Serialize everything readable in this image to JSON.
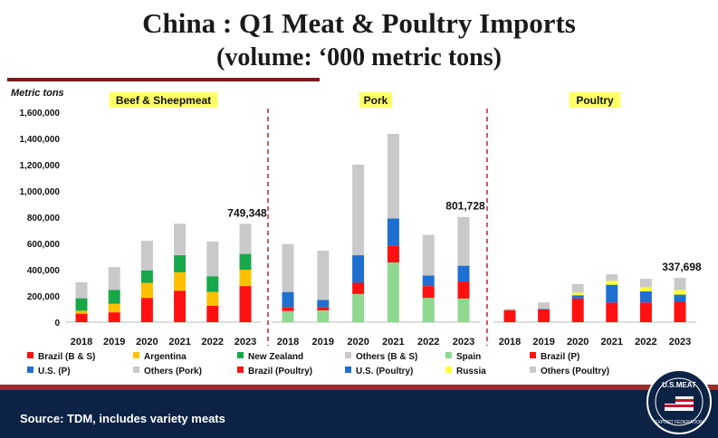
{
  "title_line1": "China : Q1 Meat & Poultry Imports",
  "title_line2": "(volume: ‘000 metric tons)",
  "footer_source": "Source: TDM, includes variety meats",
  "logo_text": "U.S.MEAT EXPORT FEDERATION",
  "colors": {
    "title_rule": "#7a1b1b",
    "footer_bg": "#0d2346",
    "footer_stripe": "#9e2a2b",
    "panel_label_bg": "#ffff66",
    "divider": "#b02a2a"
  },
  "chart_data": {
    "type": "bar",
    "stacked": true,
    "ylabel": "Metric tons",
    "ylim": [
      0,
      1600000
    ],
    "y_ticks": [
      0,
      200000,
      400000,
      600000,
      800000,
      1000000,
      1200000,
      1400000,
      1600000
    ],
    "y_tick_labels": [
      "0",
      "200,000",
      "400,000",
      "600,000",
      "800,000",
      "1,000,000",
      "1,200,000",
      "1,400,000",
      "1,600,000"
    ],
    "grid": false,
    "legend": "bottom",
    "panels": [
      {
        "label": "Beef & Sheepmeat",
        "categories": [
          "2018",
          "2019",
          "2020",
          "2021",
          "2022",
          "2023"
        ],
        "series": [
          {
            "name": "Brazil (B & S)",
            "color": "#ff1111",
            "values": [
              65000,
              75000,
              185000,
              240000,
              125000,
              275000
            ]
          },
          {
            "name": "Argentina",
            "color": "#ffc000",
            "values": [
              22000,
              65000,
              115000,
              140000,
              105000,
              125000
            ]
          },
          {
            "name": "New Zealand",
            "color": "#17a84a",
            "values": [
              95000,
              105000,
              95000,
              130000,
              120000,
              120000
            ]
          },
          {
            "name": "Others (B & S)",
            "color": "#c9c9c9",
            "values": [
              123000,
              175000,
              225000,
              240000,
              265000,
              229348
            ]
          }
        ],
        "annotation": {
          "category": "2023",
          "text": "749,348"
        }
      },
      {
        "label": "Pork",
        "categories": [
          "2018",
          "2019",
          "2020",
          "2021",
          "2022",
          "2023"
        ],
        "series": [
          {
            "name": "Spain",
            "color": "#8fd88f",
            "values": [
              85000,
              90000,
              215000,
              455000,
              185000,
              180000
            ]
          },
          {
            "name": "Brazil (P)",
            "color": "#ff1111",
            "values": [
              30000,
              25000,
              85000,
              130000,
              90000,
              130000
            ]
          },
          {
            "name": "U.S. (P)",
            "color": "#1f6fd1",
            "values": [
              115000,
              55000,
              210000,
              205000,
              80000,
              120000
            ]
          },
          {
            "name": "Others (Pork)",
            "color": "#c9c9c9",
            "values": [
              365000,
              375000,
              690000,
              645000,
              310000,
              371728
            ]
          }
        ],
        "annotation": {
          "category": "2023",
          "text": "801,728"
        }
      },
      {
        "label": "Poultry",
        "categories": [
          "2018",
          "2019",
          "2020",
          "2021",
          "2022",
          "2023"
        ],
        "series": [
          {
            "name": "Brazil (Poultry)",
            "color": "#ff1111",
            "values": [
              92000,
              98000,
              180000,
              150000,
              150000,
              155000
            ]
          },
          {
            "name": "U.S. (Poultry)",
            "color": "#1f6fd1",
            "values": [
              0,
              2000,
              25000,
              135000,
              85000,
              55000
            ]
          },
          {
            "name": "Russia",
            "color": "#ffff33",
            "values": [
              0,
              0,
              20000,
              30000,
              30000,
              35000
            ]
          },
          {
            "name": "Others (Poultry)",
            "color": "#c9c9c9",
            "values": [
              10000,
              50000,
              65000,
              50000,
              65000,
              92698
            ]
          }
        ],
        "annotation": {
          "category": "2023",
          "text": "337,698"
        }
      }
    ],
    "legend_rows": [
      [
        "Brazil (B & S)",
        "Argentina",
        "New Zealand",
        "Others (B & S)",
        "Spain",
        "Brazil (P)"
      ],
      [
        "U.S. (P)",
        "Others (Pork)",
        "Brazil (Poultry)",
        "U.S. (Poultry)",
        "Russia",
        "Others (Poultry)"
      ]
    ]
  }
}
